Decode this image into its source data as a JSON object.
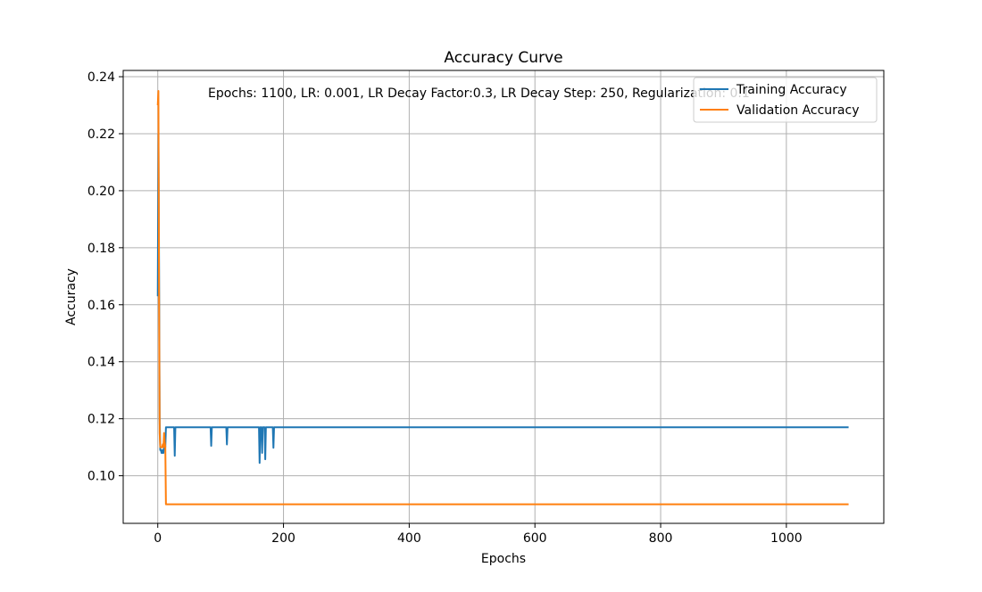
{
  "chart_data": {
    "type": "line",
    "title": "Accuracy Curve",
    "xlabel": "Epochs",
    "ylabel": "Accuracy",
    "xlim": [
      -55,
      1155
    ],
    "ylim": [
      0.0833,
      0.2422
    ],
    "x_ticks": [
      0,
      200,
      400,
      600,
      800,
      1000
    ],
    "y_ticks": [
      0.1,
      0.12,
      0.14,
      0.16,
      0.18,
      0.2,
      0.22,
      0.24
    ],
    "x_tick_labels": [
      "0",
      "200",
      "400",
      "600",
      "800",
      "1000"
    ],
    "y_tick_labels": [
      "0.10",
      "0.12",
      "0.14",
      "0.16",
      "0.18",
      "0.20",
      "0.22",
      "0.24"
    ],
    "grid": true,
    "legend_position": "top-right",
    "annotation": "Epochs: 1100, LR: 0.001, LR Decay Factor:0.3, LR Decay Step: 250, Regularization: 0.1",
    "series": [
      {
        "name": "Training Accuracy",
        "color": "#1f77b4",
        "x": [
          0,
          1,
          2,
          3,
          4,
          5,
          6,
          7,
          8,
          9,
          10,
          11,
          12,
          13,
          14,
          26,
          27,
          28,
          84,
          85,
          86,
          109,
          110,
          111,
          161,
          162,
          163,
          165,
          166,
          167,
          170,
          171,
          172,
          183,
          184,
          185,
          1099
        ],
        "values": [
          0.163,
          0.22,
          0.175,
          0.12,
          0.109,
          0.109,
          0.108,
          0.109,
          0.108,
          0.108,
          0.11,
          0.113,
          0.11,
          0.117,
          0.117,
          0.117,
          0.107,
          0.117,
          0.117,
          0.1105,
          0.117,
          0.117,
          0.111,
          0.117,
          0.117,
          0.1045,
          0.117,
          0.117,
          0.108,
          0.117,
          0.117,
          0.1058,
          0.117,
          0.117,
          0.1098,
          0.117,
          0.117
        ]
      },
      {
        "name": "Validation Accuracy",
        "color": "#ff7f0e",
        "x": [
          0,
          1,
          2,
          3,
          4,
          5,
          6,
          7,
          8,
          9,
          10,
          11,
          12,
          13,
          1099
        ],
        "values": [
          0.23,
          0.235,
          0.165,
          0.115,
          0.11,
          0.11,
          0.11,
          0.11,
          0.111,
          0.11,
          0.115,
          0.112,
          0.11,
          0.09,
          0.09
        ]
      }
    ]
  }
}
